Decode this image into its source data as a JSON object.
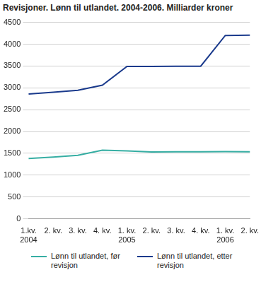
{
  "chart_data": {
    "type": "line",
    "title": "Revisjoner. Lønn til utlandet. 2004-2006. Milliarder kroner",
    "categories": [
      "1.kv.\n2004",
      "2. kv.",
      "3. kv.",
      "4. kv.",
      "1. kv.\n2005",
      "2. kv.",
      "3. kv.",
      "4. kv.",
      "1. kv.\n2006",
      "2. kv."
    ],
    "series": [
      {
        "name": "Lønn til utlandet, før revisjon",
        "color": "#36aea3",
        "values": [
          1380,
          1415,
          1455,
          1570,
          1555,
          1530,
          1535,
          1535,
          1540,
          1535
        ]
      },
      {
        "name": "Lønn til utlandet, etter revisjon",
        "color": "#1a3a8c",
        "values": [
          2860,
          2900,
          2945,
          3060,
          3490,
          3490,
          3495,
          3495,
          4200,
          4205
        ]
      }
    ],
    "ylim": [
      0,
      4500
    ],
    "yticks": [
      0,
      500,
      1000,
      1500,
      2000,
      2500,
      3000,
      3500,
      4000,
      4500
    ],
    "grid": true,
    "legend": "bottom"
  }
}
